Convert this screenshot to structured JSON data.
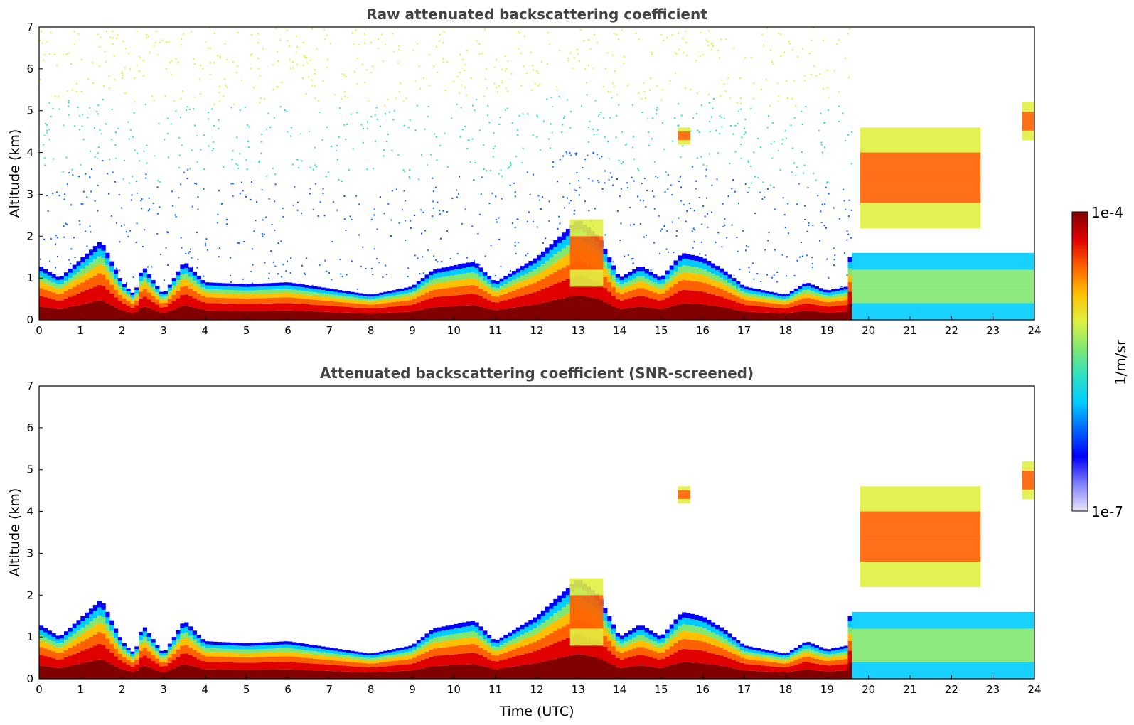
{
  "chart_data": [
    {
      "type": "heatmap",
      "title": "Raw attenuated backscattering coefficient",
      "xlabel": "",
      "ylabel": "Altitude (km)",
      "xlim": [
        0,
        24
      ],
      "ylim": [
        0,
        7
      ],
      "xticks": [
        "0",
        "1",
        "2",
        "3",
        "4",
        "5",
        "6",
        "7",
        "8",
        "9",
        "10",
        "11",
        "12",
        "13",
        "14",
        "15",
        "16",
        "17",
        "18",
        "19",
        "20",
        "21",
        "22",
        "23",
        "24"
      ],
      "yticks": [
        "0",
        "1",
        "2",
        "3",
        "4",
        "5",
        "6",
        "7"
      ],
      "screened": false,
      "boundary_layer_top_km": [
        [
          0,
          1.3
        ],
        [
          0.5,
          1.0
        ],
        [
          1.5,
          1.9
        ],
        [
          2.0,
          0.9
        ],
        [
          2.3,
          0.6
        ],
        [
          2.5,
          1.3
        ],
        [
          3.0,
          0.6
        ],
        [
          3.5,
          1.4
        ],
        [
          4.0,
          0.9
        ],
        [
          5.0,
          0.85
        ],
        [
          6.0,
          0.9
        ],
        [
          7.0,
          0.75
        ],
        [
          8.0,
          0.6
        ],
        [
          9.0,
          0.8
        ],
        [
          9.5,
          1.2
        ],
        [
          10.5,
          1.4
        ],
        [
          11.0,
          0.9
        ],
        [
          12.0,
          1.5
        ],
        [
          13.0,
          2.4
        ],
        [
          13.5,
          2.0
        ],
        [
          14.0,
          1.0
        ],
        [
          14.5,
          1.3
        ],
        [
          15.0,
          1.0
        ],
        [
          15.5,
          1.6
        ],
        [
          16.0,
          1.5
        ],
        [
          16.5,
          1.2
        ],
        [
          17.0,
          0.8
        ],
        [
          18.0,
          0.6
        ],
        [
          18.5,
          0.9
        ],
        [
          19.0,
          0.7
        ],
        [
          19.5,
          0.8
        ]
      ],
      "cloud_layers": [
        {
          "t_start": 19.6,
          "t_end": 24.0,
          "base_km": 0.0,
          "top_km": 1.6,
          "level": "medium"
        },
        {
          "t_start": 19.8,
          "t_end": 22.7,
          "base_km": 2.2,
          "top_km": 4.6,
          "level": "high"
        },
        {
          "t_start": 15.4,
          "t_end": 15.7,
          "base_km": 4.2,
          "top_km": 4.6,
          "level": "high"
        },
        {
          "t_start": 23.7,
          "t_end": 24.0,
          "base_km": 4.3,
          "top_km": 5.2,
          "level": "high"
        },
        {
          "t_start": 12.8,
          "t_end": 13.6,
          "base_km": 0.8,
          "top_km": 2.4,
          "level": "high"
        }
      ]
    },
    {
      "type": "heatmap",
      "title": "Attenuated backscattering coefficient (SNR-screened)",
      "xlabel": "Time (UTC)",
      "ylabel": "Altitude (km)",
      "xlim": [
        0,
        24
      ],
      "ylim": [
        0,
        7
      ],
      "xticks": [
        "0",
        "1",
        "2",
        "3",
        "4",
        "5",
        "6",
        "7",
        "8",
        "9",
        "10",
        "11",
        "12",
        "13",
        "14",
        "15",
        "16",
        "17",
        "18",
        "19",
        "20",
        "21",
        "22",
        "23",
        "24"
      ],
      "yticks": [
        "0",
        "1",
        "2",
        "3",
        "4",
        "5",
        "6",
        "7"
      ],
      "screened": true
    }
  ],
  "colorbar": {
    "label": "1/m/sr",
    "max_label": "1e-4",
    "min_label": "1e-7",
    "colors": [
      "#e8e8f8",
      "#8080ff",
      "#0000ff",
      "#0066ff",
      "#00ccff",
      "#30e0c0",
      "#80e870",
      "#e0f040",
      "#ffc000",
      "#ff6000",
      "#e00000",
      "#800000"
    ]
  }
}
